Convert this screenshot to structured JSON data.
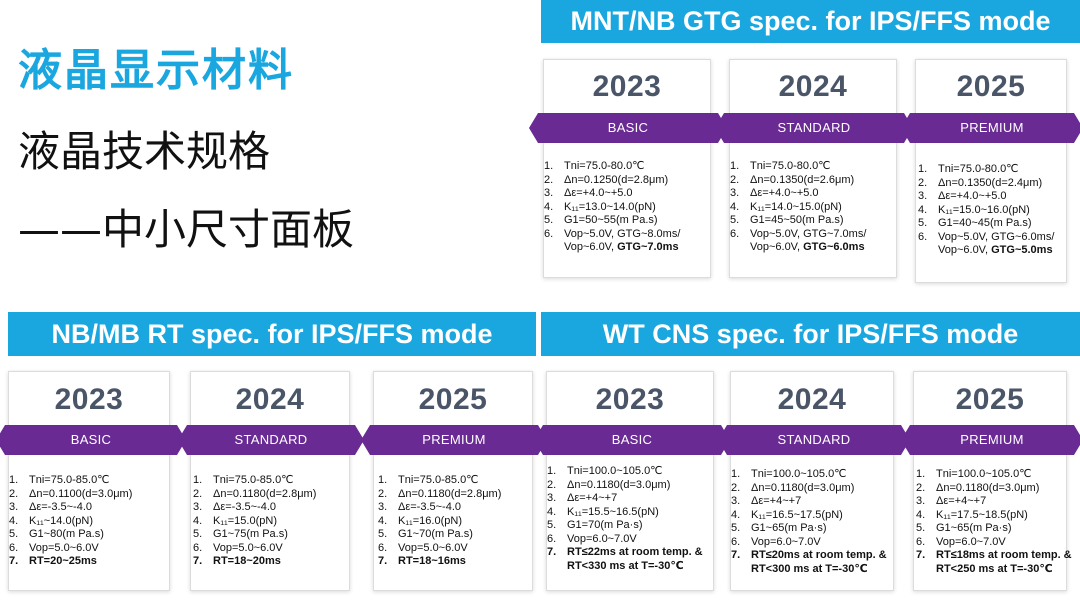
{
  "header": {
    "title": "液晶显示材料",
    "subtitle1": "液晶技术规格",
    "subtitle2": "——中小尺寸面板"
  },
  "colors": {
    "banner": "#1aa7e0",
    "ribbon": "#6a2a93",
    "year": "#4a5568"
  },
  "sections": {
    "mnt": {
      "title": "MNT/NB GTG spec. for IPS/FFS mode",
      "panels": [
        {
          "year": "2023",
          "tier": "BASIC",
          "specs": [
            "Tni=75.0-80.0℃",
            "Δn=0.1250(d=2.8μm)",
            "Δε=+4.0~+5.0",
            "K₁₁=13.0~14.0(pN)",
            "G1=50~55(m Pa.s)",
            "Vop~5.0V, GTG~8.0ms/"
          ],
          "last_plain": "Vop~6.0V, ",
          "last_bold": "GTG~7.0ms"
        },
        {
          "year": "2024",
          "tier": "STANDARD",
          "specs": [
            "Tni=75.0-80.0℃",
            "Δn=0.1350(d=2.6μm)",
            "Δε=+4.0~+5.0",
            "K₁₁=14.0~15.0(pN)",
            "G1=45~50(m Pa.s)",
            "Vop~5.0V, GTG~7.0ms/"
          ],
          "last_plain": "Vop~6.0V, ",
          "last_bold": "GTG~6.0ms"
        },
        {
          "year": "2025",
          "tier": "PREMIUM",
          "specs": [
            "Tni=75.0-80.0℃",
            "Δn=0.1350(d=2.4μm)",
            "Δε=+4.0~+5.0",
            "K₁₁=15.0~16.0(pN)",
            "G1=40~45(m Pa.s)",
            "Vop~5.0V, GTG~6.0ms/"
          ],
          "last_plain": "Vop~6.0V, ",
          "last_bold": "GTG~5.0ms"
        }
      ]
    },
    "nb": {
      "title": "NB/MB RT spec. for IPS/FFS mode",
      "panels": [
        {
          "year": "2023",
          "tier": "BASIC",
          "specs": [
            "Tni=75.0-85.0℃",
            "Δn=0.1100(d=3.0μm)",
            "Δε=-3.5~-4.0",
            "K₁₁~14.0(pN)",
            "G1~80(m Pa.s)",
            "Vop=5.0~6.0V",
            "RT=20~25ms"
          ]
        },
        {
          "year": "2024",
          "tier": "STANDARD",
          "specs": [
            "Tni=75.0-85.0℃",
            "Δn=0.1180(d=2.8μm)",
            "Δε=-3.5~-4.0",
            "K₁₁=15.0(pN)",
            "G1~75(m Pa.s)",
            "Vop=5.0~6.0V",
            "RT=18~20ms"
          ]
        },
        {
          "year": "2025",
          "tier": "PREMIUM",
          "specs": [
            "Tni=75.0-85.0℃",
            "Δn=0.1180(d=2.8μm)",
            "Δε=-3.5~-4.0",
            "K₁₁=16.0(pN)",
            "G1~70(m Pa.s)",
            "Vop=5.0~6.0V",
            "RT=18~16ms"
          ]
        }
      ]
    },
    "wt": {
      "title": "WT CNS spec. for IPS/FFS mode",
      "panels": [
        {
          "year": "2023",
          "tier": "BASIC",
          "specs": [
            "Tni=100.0~105.0℃",
            "Δn=0.1180(d=3.0μm)",
            "Δε=+4~+7",
            "K₁₁=15.5~16.5(pN)",
            "G1=70(m Pa·s)",
            "Vop=6.0~7.0V",
            "RT≤22ms at room temp. &"
          ],
          "cont": "RT<330 ms at T=-30℃"
        },
        {
          "year": "2024",
          "tier": "STANDARD",
          "specs": [
            "Tni=100.0~105.0℃",
            "Δn=0.1180(d=3.0μm)",
            "Δε=+4~+7",
            "K₁₁=16.5~17.5(pN)",
            "G1~65(m Pa·s)",
            "Vop=6.0~7.0V",
            "RT≤20ms at room temp. &"
          ],
          "cont": "RT<300 ms at T=-30℃"
        },
        {
          "year": "2025",
          "tier": "PREMIUM",
          "specs": [
            "Tni=100.0~105.0℃",
            "Δn=0.1180(d=3.0μm)",
            "Δε=+4~+7",
            "K₁₁=17.5~18.5(pN)",
            "G1~65(m Pa·s)",
            "Vop=6.0~7.0V",
            "RT≤18ms at room temp. &"
          ],
          "cont": "RT<250 ms at T=-30℃"
        }
      ]
    }
  }
}
